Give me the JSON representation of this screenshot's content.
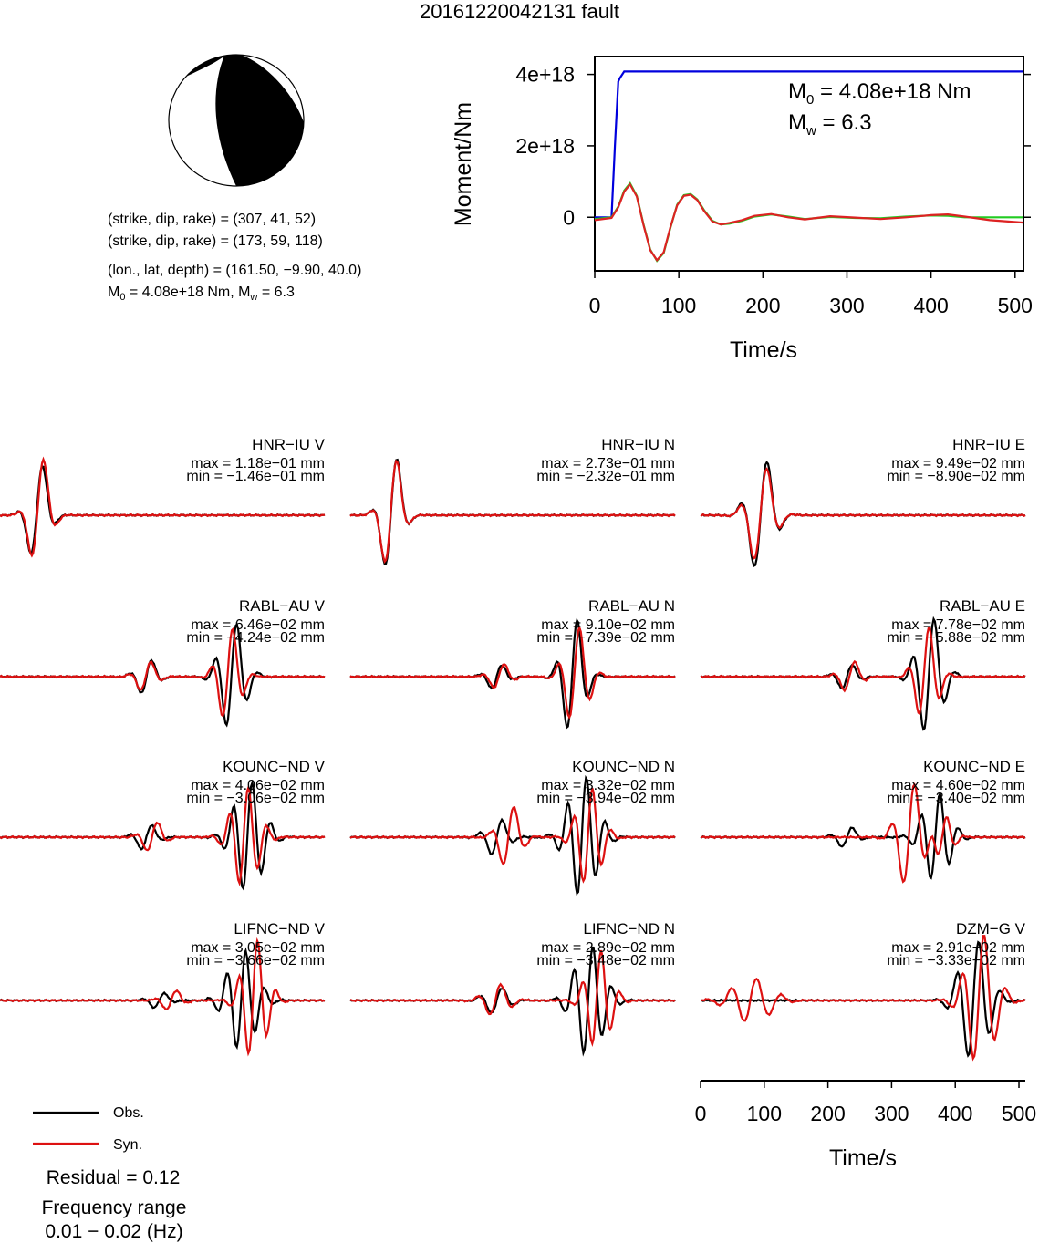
{
  "title": "20161220042131 fault",
  "mechanism": {
    "plane1": "(strike, dip, rake) = (307, 41, 52)",
    "plane2": "(strike, dip, rake) = (173, 59, 118)",
    "location": "(lon., lat, depth) = (161.50, −9.90, 40.0)",
    "m0_text": "M",
    "m0_sub": "0",
    "m0_rest": " = 4.08e+18 Nm, M",
    "mw_sub": "w",
    "mw_rest": " = 6.3",
    "colors": {
      "compressional": "#000000",
      "dilatational": "#ffffff"
    }
  },
  "chart_data": [
    {
      "type": "line",
      "title": "",
      "xlabel": "Time/s",
      "ylabel": "Moment/Nm",
      "xlim": [
        0,
        510
      ],
      "ylim": [
        -1.5e+18,
        4.5e+18
      ],
      "x_ticks": [
        0,
        100,
        200,
        300,
        400,
        500
      ],
      "y_ticks": [
        0,
        2e+18,
        4e+18
      ],
      "y_tick_labels": [
        "0",
        "2e+18",
        "4e+18"
      ],
      "annotations": {
        "m0_label": "M",
        "m0_sub": "0",
        "m0_value": " = 4.08e+18 Nm",
        "mw_label": "M",
        "mw_sub": "w",
        "mw_value": " = 6.3"
      },
      "series": [
        {
          "color": "#0000dd",
          "x": [
            0,
            20,
            24,
            28,
            30,
            35,
            510
          ],
          "y": [
            0,
            0,
            2e+18,
            3.8e+18,
            3.9e+18,
            4.08e+18,
            4.08e+18
          ]
        },
        {
          "color": "#22cc22",
          "x": [
            0,
            20,
            28,
            35,
            42,
            50,
            58,
            66,
            74,
            82,
            90,
            98,
            106,
            114,
            122,
            130,
            140,
            150,
            160,
            175,
            190,
            210,
            230,
            250,
            280,
            310,
            340,
            370,
            400,
            420,
            440,
            470,
            510
          ],
          "y": [
            -5e+16,
            0,
            3e+17,
            7.5e+17,
            9.5e+17,
            6e+17,
            -2e+17,
            -9e+17,
            -1.22e+18,
            -1e+18,
            -3e+17,
            3.5e+17,
            6.2e+17,
            6.5e+17,
            5e+17,
            2e+17,
            -1e+17,
            -2e+17,
            -1.8e+17,
            -1e+17,
            2e+16,
            8e+16,
            2e+16,
            -5e+16,
            1e+16,
            -2e+16,
            -3e+16,
            2e+16,
            5e+16,
            4e+16,
            0.0,
            0.0,
            0.0
          ]
        },
        {
          "color": "#dd2222",
          "x": [
            0,
            20,
            28,
            35,
            42,
            50,
            58,
            66,
            74,
            82,
            90,
            98,
            106,
            114,
            122,
            130,
            140,
            150,
            160,
            175,
            190,
            210,
            230,
            250,
            280,
            310,
            340,
            370,
            400,
            420,
            440,
            470,
            510
          ],
          "y": [
            -8e+16,
            -2e+16,
            2.8e+17,
            7.2e+17,
            9.2e+17,
            5.8e+17,
            -2.2e+17,
            -9.2e+17,
            -1.2e+18,
            -9.8e+17,
            -2.8e+17,
            3.3e+17,
            6e+17,
            6.3e+17,
            4.8e+17,
            1.8e+17,
            -1.2e+17,
            -2e+17,
            -1.6e+17,
            -8e+16,
            4e+16,
            9e+16,
            0.0,
            -6e+16,
            3e+16,
            -1e+16,
            -5e+16,
            0.0,
            6e+16,
            8e+16,
            2e+16,
            -8e+16,
            -1.5e+17
          ]
        }
      ]
    },
    {
      "type": "line",
      "title": "waveforms",
      "xlabel": "Time/s",
      "xlim": [
        0,
        510
      ],
      "x_ticks": [
        0,
        100,
        200,
        300,
        400,
        500
      ],
      "legend": [
        {
          "name": "Obs.",
          "color": "#000000"
        },
        {
          "name": "Syn.",
          "color": "#dd1111"
        }
      ],
      "stations": [
        {
          "name": "HNR−IU V",
          "max": "max = 1.18e−01 mm",
          "min": "min = −1.46e−01 mm"
        },
        {
          "name": "HNR−IU N",
          "max": "max = 2.73e−01 mm",
          "min": "min = −2.32e−01 mm"
        },
        {
          "name": "HNR−IU E",
          "max": "max = 9.49e−02 mm",
          "min": "min = −8.90e−02 mm"
        },
        {
          "name": "RABL−AU V",
          "max": "max = 6.46e−02 mm",
          "min": "min = −4.24e−02 mm"
        },
        {
          "name": "RABL−AU N",
          "max": "max = 9.10e−02 mm",
          "min": "min = −7.39e−02 mm"
        },
        {
          "name": "RABL−AU E",
          "max": "max = 7.78e−02 mm",
          "min": "min = −5.88e−02 mm"
        },
        {
          "name": "KOUNC−ND V",
          "max": "max = 4.06e−02 mm",
          "min": "min = −3.06e−02 mm"
        },
        {
          "name": "KOUNC−ND N",
          "max": "max = 3.32e−02 mm",
          "min": "min = −3.94e−02 mm"
        },
        {
          "name": "KOUNC−ND E",
          "max": "max = 4.60e−02 mm",
          "min": "min = −3.40e−02 mm"
        },
        {
          "name": "LIFNC−ND V",
          "max": "max = 3.05e−02 mm",
          "min": "min = −3.66e−02 mm"
        },
        {
          "name": "LIFNC−ND N",
          "max": "max = 2.89e−02 mm",
          "min": "min = −3.48e−02 mm"
        },
        {
          "name": "DZM−G V",
          "max": "max = 2.91e−02 mm",
          "min": "min = −3.33e−02 mm"
        }
      ]
    }
  ],
  "summary": {
    "residual": "Residual = 0.12",
    "freq_label": "Frequency range",
    "freq_value": "0.01 − 0.02 (Hz)"
  }
}
